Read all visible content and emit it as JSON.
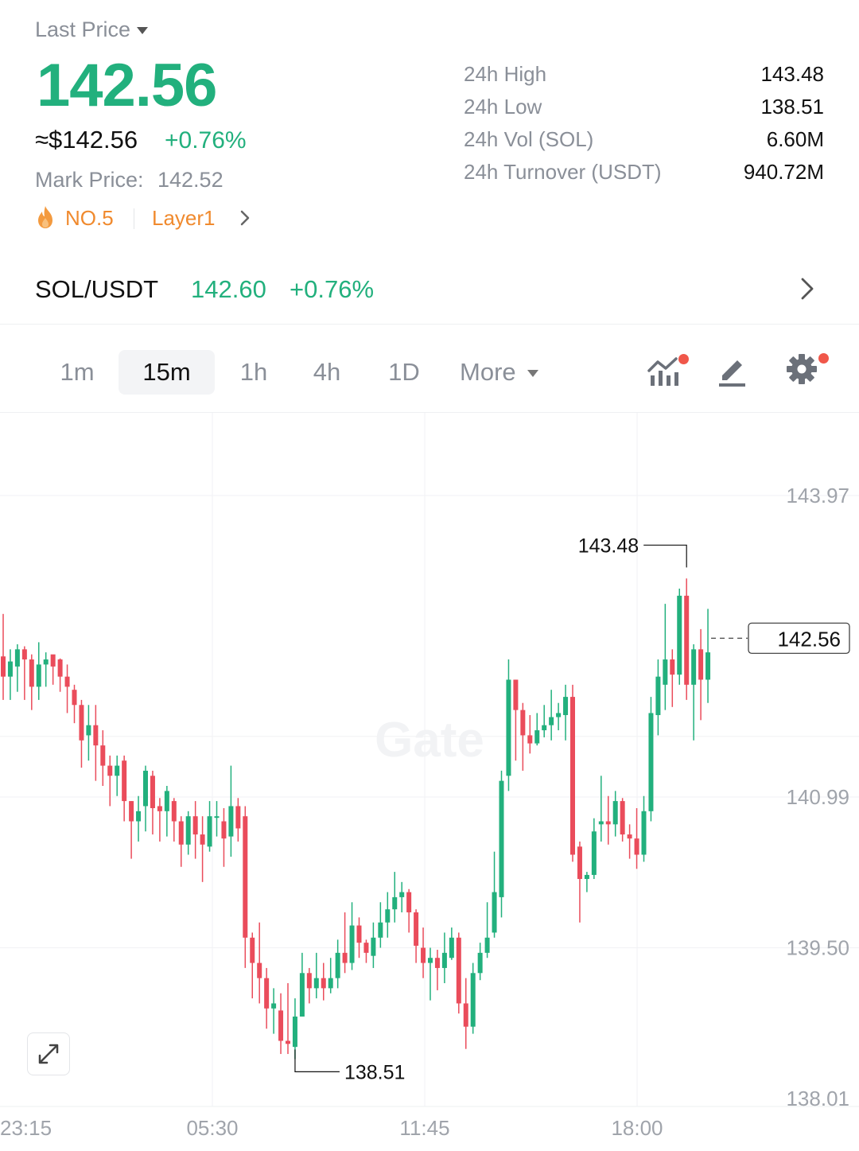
{
  "header": {
    "last_price_label": "Last Price",
    "last_price": "142.56",
    "approx_usd": "≈$142.56",
    "change_pct": "+0.76%",
    "mark_price_label": "Mark Price:",
    "mark_price": "142.52",
    "rank": "NO.5",
    "category": "Layer1"
  },
  "stats": [
    {
      "label": "24h High",
      "value": "143.48"
    },
    {
      "label": "24h Low",
      "value": "138.51"
    },
    {
      "label": "24h Vol (SOL)",
      "value": "6.60M"
    },
    {
      "label": "24h Turnover (USDT)",
      "value": "940.72M"
    }
  ],
  "pair": {
    "name": "SOL/USDT",
    "price": "142.60",
    "change": "+0.76%"
  },
  "tabs": {
    "items": [
      "1m",
      "15m",
      "1h",
      "4h",
      "1D",
      "More"
    ],
    "active": "15m"
  },
  "colors": {
    "up": "#22b07d",
    "down": "#ea4c5b",
    "accent_orange": "#f08a2e",
    "badge_dot": "#f0574a"
  },
  "icons": [
    "indicator-icon",
    "draw-icon",
    "settings-icon",
    "expand-icon",
    "fire-icon",
    "chevron-right-icon"
  ],
  "chart_data": {
    "type": "candlestick",
    "interval": "15m",
    "y_ticks": [
      "143.97",
      "140.99",
      "139.50",
      "138.01"
    ],
    "x_ticks": [
      "23:15",
      "05:30",
      "11:45",
      "18:00"
    ],
    "ylim": [
      138.01,
      143.97
    ],
    "high_marker": "143.48",
    "low_marker": "138.51",
    "current_price": "142.56",
    "candles": [
      [
        142.38,
        142.18,
        142.8,
        141.95
      ],
      [
        142.18,
        142.33,
        142.45,
        141.95
      ],
      [
        142.28,
        142.45,
        142.5,
        142.03
      ],
      [
        142.45,
        142.35,
        142.48,
        141.95
      ],
      [
        142.35,
        142.08,
        142.4,
        141.85
      ],
      [
        142.08,
        142.3,
        142.52,
        141.95
      ],
      [
        142.3,
        142.35,
        142.42,
        142.08
      ],
      [
        142.4,
        142.28,
        142.38,
        142.1
      ],
      [
        142.35,
        142.18,
        142.36,
        142.03
      ],
      [
        142.18,
        142.08,
        142.3,
        141.82
      ],
      [
        142.05,
        141.9,
        142.1,
        141.72
      ],
      [
        141.9,
        141.55,
        141.95,
        141.28
      ],
      [
        141.6,
        141.7,
        141.9,
        141.35
      ],
      [
        141.7,
        141.5,
        141.9,
        141.15
      ],
      [
        141.5,
        141.3,
        141.65,
        141.1
      ],
      [
        141.3,
        141.2,
        141.4,
        140.9
      ],
      [
        141.2,
        141.3,
        141.4,
        141.0
      ],
      [
        141.35,
        140.95,
        141.4,
        140.75
      ],
      [
        140.95,
        140.75,
        140.95,
        140.38
      ],
      [
        140.75,
        140.85,
        141.0,
        140.55
      ],
      [
        140.9,
        141.25,
        141.3,
        140.65
      ],
      [
        141.2,
        140.88,
        141.25,
        140.62
      ],
      [
        140.9,
        140.85,
        140.98,
        140.55
      ],
      [
        140.85,
        141.05,
        141.1,
        140.6
      ],
      [
        140.95,
        140.75,
        140.98,
        140.55
      ],
      [
        140.75,
        140.52,
        140.8,
        140.3
      ],
      [
        140.52,
        140.8,
        140.85,
        140.42
      ],
      [
        140.8,
        140.62,
        140.95,
        140.38
      ],
      [
        140.62,
        140.52,
        140.8,
        140.15
      ],
      [
        140.5,
        140.8,
        140.95,
        140.45
      ],
      [
        140.8,
        140.8,
        140.95,
        140.6
      ],
      [
        140.75,
        140.58,
        140.88,
        140.3
      ],
      [
        140.6,
        140.9,
        141.3,
        140.4
      ],
      [
        140.9,
        140.68,
        140.98,
        140.55
      ],
      [
        140.8,
        139.6,
        140.9,
        139.3
      ],
      [
        139.6,
        139.35,
        139.65,
        139.0
      ],
      [
        139.35,
        139.2,
        139.75,
        138.95
      ],
      [
        139.2,
        138.9,
        139.3,
        138.7
      ],
      [
        138.9,
        138.95,
        139.1,
        138.65
      ],
      [
        138.88,
        138.58,
        139.05,
        138.45
      ],
      [
        138.58,
        138.55,
        139.15,
        138.45
      ],
      [
        138.52,
        138.82,
        139.0,
        138.4
      ],
      [
        138.82,
        139.25,
        139.45,
        138.82
      ],
      [
        139.25,
        139.1,
        139.3,
        138.95
      ],
      [
        139.1,
        139.2,
        139.45,
        139.0
      ],
      [
        139.2,
        139.1,
        139.35,
        138.98
      ],
      [
        139.1,
        139.2,
        139.4,
        139.05
      ],
      [
        139.2,
        139.45,
        139.58,
        139.1
      ],
      [
        139.45,
        139.35,
        139.85,
        139.25
      ],
      [
        139.35,
        139.72,
        139.95,
        139.28
      ],
      [
        139.72,
        139.55,
        139.8,
        139.4
      ],
      [
        139.55,
        139.45,
        139.58,
        139.35
      ],
      [
        139.42,
        139.6,
        139.75,
        139.3
      ],
      [
        139.6,
        139.75,
        139.95,
        139.5
      ],
      [
        139.75,
        139.88,
        140.05,
        139.6
      ],
      [
        139.88,
        140.0,
        140.25,
        139.75
      ],
      [
        140.0,
        140.05,
        140.15,
        139.85
      ],
      [
        140.05,
        139.85,
        140.08,
        139.65
      ],
      [
        139.85,
        139.52,
        139.88,
        139.35
      ],
      [
        139.5,
        139.35,
        139.7,
        139.2
      ],
      [
        139.35,
        139.4,
        139.5,
        138.98
      ],
      [
        139.4,
        139.3,
        139.48,
        139.08
      ],
      [
        139.3,
        139.45,
        139.65,
        139.15
      ],
      [
        139.4,
        139.6,
        139.7,
        139.38
      ],
      [
        139.6,
        138.95,
        139.65,
        138.85
      ],
      [
        138.95,
        138.72,
        139.2,
        138.5
      ],
      [
        138.72,
        139.25,
        139.35,
        138.65
      ],
      [
        139.25,
        139.45,
        139.55,
        139.18
      ],
      [
        139.45,
        139.6,
        139.95,
        139.4
      ],
      [
        139.65,
        140.05,
        140.45,
        139.6
      ],
      [
        140.0,
        141.15,
        141.25,
        139.8
      ],
      [
        141.2,
        142.15,
        142.35,
        141.05
      ],
      [
        142.15,
        141.85,
        142.15,
        141.35
      ],
      [
        141.85,
        141.6,
        141.92,
        141.25
      ],
      [
        141.6,
        141.52,
        141.8,
        141.42
      ],
      [
        141.52,
        141.65,
        141.82,
        141.5
      ],
      [
        141.65,
        141.7,
        141.9,
        141.58
      ],
      [
        141.7,
        141.78,
        142.05,
        141.55
      ],
      [
        141.78,
        141.82,
        141.92,
        141.65
      ],
      [
        141.8,
        141.98,
        142.1,
        141.55
      ],
      [
        141.98,
        140.42,
        142.1,
        140.35
      ],
      [
        140.5,
        140.18,
        140.55,
        139.75
      ],
      [
        140.18,
        140.22,
        140.25,
        140.05
      ],
      [
        140.22,
        140.65,
        140.78,
        140.18
      ],
      [
        140.72,
        140.75,
        141.2,
        140.55
      ],
      [
        140.75,
        140.72,
        141.0,
        140.52
      ],
      [
        140.72,
        140.95,
        141.05,
        140.6
      ],
      [
        140.95,
        140.62,
        140.98,
        140.55
      ],
      [
        140.62,
        140.58,
        140.72,
        140.38
      ],
      [
        140.58,
        140.42,
        140.88,
        140.28
      ],
      [
        140.42,
        140.85,
        141.0,
        140.35
      ],
      [
        140.85,
        141.82,
        141.98,
        140.75
      ],
      [
        141.8,
        142.18,
        142.35,
        141.6
      ],
      [
        142.1,
        142.35,
        142.9,
        141.85
      ],
      [
        142.35,
        142.2,
        142.45,
        141.88
      ],
      [
        142.2,
        142.98,
        143.05,
        142.1
      ],
      [
        142.98,
        142.1,
        143.15,
        141.95
      ],
      [
        142.1,
        142.45,
        142.5,
        141.55
      ],
      [
        142.45,
        142.15,
        142.65,
        141.75
      ],
      [
        142.15,
        142.42,
        142.85,
        141.92
      ]
    ]
  }
}
